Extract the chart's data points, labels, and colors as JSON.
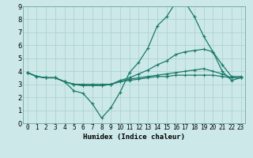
{
  "title": "",
  "xlabel": "Humidex (Indice chaleur)",
  "bg_color": "#cce8e8",
  "grid_color": "#aacfcf",
  "line_color": "#1a7a6a",
  "xlim": [
    -0.5,
    23.5
  ],
  "ylim": [
    0,
    9
  ],
  "xticks": [
    0,
    1,
    2,
    3,
    4,
    5,
    6,
    7,
    8,
    9,
    10,
    11,
    12,
    13,
    14,
    15,
    16,
    17,
    18,
    19,
    20,
    21,
    22,
    23
  ],
  "yticks": [
    0,
    1,
    2,
    3,
    4,
    5,
    6,
    7,
    8,
    9
  ],
  "lines": [
    [
      3.9,
      3.6,
      3.5,
      3.5,
      3.2,
      2.5,
      2.3,
      1.5,
      0.4,
      1.2,
      2.4,
      3.9,
      4.7,
      5.8,
      7.5,
      8.2,
      9.3,
      9.3,
      8.2,
      6.7,
      5.5,
      4.0,
      3.3,
      3.5
    ],
    [
      3.9,
      3.6,
      3.5,
      3.5,
      3.2,
      3.0,
      3.0,
      3.0,
      3.0,
      3.0,
      3.3,
      3.5,
      3.8,
      4.1,
      4.5,
      4.8,
      5.3,
      5.5,
      5.6,
      5.7,
      5.5,
      4.5,
      3.6,
      3.6
    ],
    [
      3.9,
      3.6,
      3.5,
      3.5,
      3.2,
      3.0,
      2.9,
      2.9,
      2.9,
      3.0,
      3.2,
      3.4,
      3.5,
      3.6,
      3.7,
      3.8,
      3.9,
      4.0,
      4.1,
      4.2,
      4.0,
      3.8,
      3.5,
      3.5
    ],
    [
      3.9,
      3.6,
      3.5,
      3.5,
      3.2,
      3.0,
      2.9,
      2.9,
      2.9,
      3.0,
      3.2,
      3.3,
      3.4,
      3.5,
      3.6,
      3.6,
      3.7,
      3.7,
      3.7,
      3.7,
      3.7,
      3.6,
      3.5,
      3.5
    ]
  ],
  "tick_fontsize": 5.5,
  "label_fontsize": 6.5,
  "linewidth": 0.9,
  "markersize": 2.5
}
